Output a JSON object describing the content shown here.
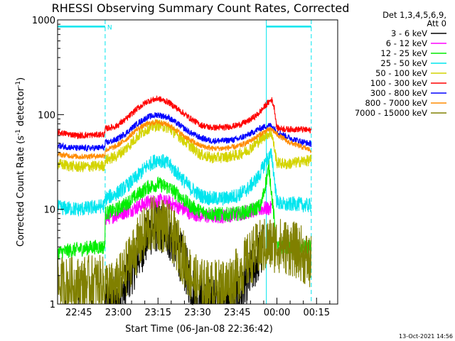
{
  "chart_data": {
    "type": "line",
    "title": "RHESSI Observing Summary Count Rates, Corrected",
    "xlabel": "Start Time (06-Jan-08 22:36:42)",
    "ylabel_main": "Corrected Count Rate (s",
    "ylabel_sup1": "-1",
    "ylabel_mid": " detector",
    "ylabel_sup2": "-1",
    "ylabel_end": ")",
    "y_scale": "log",
    "ylim": [
      1,
      1000
    ],
    "xlim_min": [
      -8,
      98
    ],
    "x_ticks": [
      {
        "v": 0,
        "label": "22:45"
      },
      {
        "v": 15,
        "label": "23:00"
      },
      {
        "v": 30,
        "label": "23:15"
      },
      {
        "v": 45,
        "label": "23:30"
      },
      {
        "v": 60,
        "label": "23:45"
      },
      {
        "v": 75,
        "label": "00:00"
      },
      {
        "v": 90,
        "label": "00:15"
      }
    ],
    "y_ticks": [
      {
        "v": 1,
        "label": "1"
      },
      {
        "v": 10,
        "label": "10"
      },
      {
        "v": 100,
        "label": "100"
      },
      {
        "v": 1000,
        "label": "1000"
      }
    ],
    "legend_header": [
      "Det 1,3,4,5,6,9,",
      "Att 0"
    ],
    "legend_position": "right",
    "markers": {
      "night_top": 850,
      "night_label": "N",
      "lines": [
        {
          "x": -8,
          "style": "solid"
        },
        {
          "x": 10,
          "style": "dashed"
        },
        {
          "x": 71,
          "style": "solid"
        },
        {
          "x": 88,
          "style": "dashed"
        }
      ],
      "bars": [
        [
          -8,
          10
        ],
        [
          71,
          88
        ]
      ],
      "color": "#00e5ee"
    },
    "series": [
      {
        "name": "3 - 6 keV",
        "color": "#000000",
        "band": 1.9,
        "x": [
          10,
          12,
          14,
          17,
          20,
          24,
          27,
          30,
          33,
          36,
          39,
          42,
          45,
          48,
          52,
          56,
          60,
          63,
          66,
          68,
          70
        ],
        "y": [
          1,
          1,
          1.1,
          1.4,
          2.3,
          4,
          6,
          6.7,
          6,
          4.5,
          3,
          1.8,
          1.1,
          1,
          1,
          1,
          1.1,
          1.6,
          2.4,
          3.2,
          3.8
        ]
      },
      {
        "name": "6 - 12 keV",
        "color": "#ff00ff",
        "band": 1.2,
        "x": [
          10,
          14,
          18,
          22,
          26,
          30,
          34,
          38,
          42,
          46,
          50,
          55,
          60,
          65,
          70,
          73
        ],
        "y": [
          8,
          8.7,
          9.5,
          10.5,
          11.8,
          12.3,
          11.8,
          10.5,
          9.3,
          8.6,
          8.4,
          8.5,
          9,
          9.6,
          10.2,
          10.2
        ]
      },
      {
        "name": "12 - 25 keV",
        "color": "#00ee00",
        "band": 1.2,
        "x": [
          -8,
          0,
          6,
          9.9,
          10,
          14,
          18,
          22,
          26,
          30,
          34,
          38,
          42,
          46,
          50,
          55,
          60,
          65,
          69,
          72,
          75,
          79,
          84,
          88
        ],
        "y": [
          3.5,
          3.8,
          4,
          4,
          9,
          9.8,
          11.5,
          14,
          17,
          18.5,
          17,
          14,
          11,
          9.5,
          9,
          8.8,
          9,
          9.6,
          11,
          28,
          4,
          4,
          4,
          4
        ]
      },
      {
        "name": "25 - 50 keV",
        "color": "#00e5ee",
        "band": 1.2,
        "x": [
          -8,
          0,
          6,
          9.9,
          10,
          14,
          18,
          22,
          26,
          30,
          34,
          38,
          42,
          46,
          50,
          55,
          60,
          64,
          68,
          71,
          73,
          75,
          78,
          82,
          86,
          88
        ],
        "y": [
          10.5,
          10,
          10.5,
          11,
          13,
          14.5,
          17.5,
          22,
          29,
          34,
          30,
          23,
          17,
          14,
          13,
          13,
          14,
          16.5,
          22,
          33,
          38,
          12,
          11,
          11.5,
          11,
          11
        ]
      },
      {
        "name": "50 - 100 keV",
        "color": "#d4d400",
        "band": 1.15,
        "x": [
          -8,
          0,
          6,
          9.9,
          10,
          14,
          18,
          22,
          26,
          30,
          34,
          38,
          42,
          46,
          50,
          55,
          60,
          64,
          68,
          71,
          73,
          75,
          79,
          84,
          88
        ],
        "y": [
          30,
          28,
          28.5,
          29,
          33,
          36,
          44,
          58,
          71,
          78,
          72,
          59,
          47,
          38,
          35,
          35.5,
          37.5,
          42,
          52,
          62,
          64,
          31,
          30,
          32,
          33
        ]
      },
      {
        "name": "100 - 300 keV",
        "color": "#ff0000",
        "band": 1.08,
        "x": [
          -8,
          0,
          6,
          9.9,
          10,
          14,
          18,
          22,
          26,
          30,
          34,
          38,
          42,
          46,
          50,
          55,
          60,
          64,
          68,
          71,
          73,
          74,
          75,
          79,
          84,
          88
        ],
        "y": [
          65,
          60,
          61,
          62,
          71,
          75,
          90,
          115,
          138,
          148,
          135,
          112,
          92,
          78,
          73,
          73,
          77,
          85,
          102,
          128,
          145,
          118,
          72,
          70,
          70,
          68
        ]
      },
      {
        "name": "300 - 800 keV",
        "color": "#0000ff",
        "band": 1.08,
        "x": [
          -8,
          0,
          6,
          9.9,
          10,
          14,
          18,
          22,
          26,
          30,
          34,
          38,
          42,
          46,
          50,
          55,
          60,
          64,
          68,
          71,
          73,
          75,
          79,
          84,
          88
        ],
        "y": [
          47,
          44,
          44.5,
          45,
          50,
          54,
          64,
          80,
          94,
          100,
          93,
          78,
          65,
          57,
          53,
          53,
          55,
          61,
          70,
          76,
          77,
          66,
          58,
          52,
          49
        ]
      },
      {
        "name": "800 - 7000 keV",
        "color": "#ff8c00",
        "band": 1.07,
        "x": [
          -8,
          0,
          6,
          9.9,
          10,
          14,
          18,
          22,
          26,
          30,
          34,
          38,
          42,
          46,
          50,
          55,
          60,
          64,
          68,
          71,
          73,
          75,
          79,
          84,
          88
        ],
        "y": [
          38,
          36,
          36.5,
          37,
          42,
          46,
          55,
          70,
          80,
          84,
          78,
          65,
          54,
          47,
          44,
          44,
          46,
          51,
          60,
          68,
          70,
          62,
          52,
          46,
          42
        ]
      },
      {
        "name": "7000 - 15000 keV",
        "color": "#808000",
        "band": 2.0,
        "x": [
          -8,
          0,
          6,
          10,
          12,
          14,
          17,
          20,
          24,
          27,
          30,
          33,
          36,
          39,
          42,
          45,
          48,
          52,
          56,
          60,
          63,
          66,
          69,
          72,
          75,
          79,
          84,
          88
        ],
        "y": [
          1.6,
          1.6,
          1.7,
          1.6,
          1.4,
          1.5,
          2,
          3.2,
          5,
          6.8,
          7.2,
          6.6,
          5,
          3.4,
          2.1,
          1.6,
          1.5,
          1.5,
          1.6,
          2,
          2.6,
          3.4,
          4,
          4.2,
          4.2,
          4,
          3.5,
          2.6
        ]
      }
    ]
  },
  "footer": {
    "timestamp": "13-Oct-2021 14:56"
  }
}
